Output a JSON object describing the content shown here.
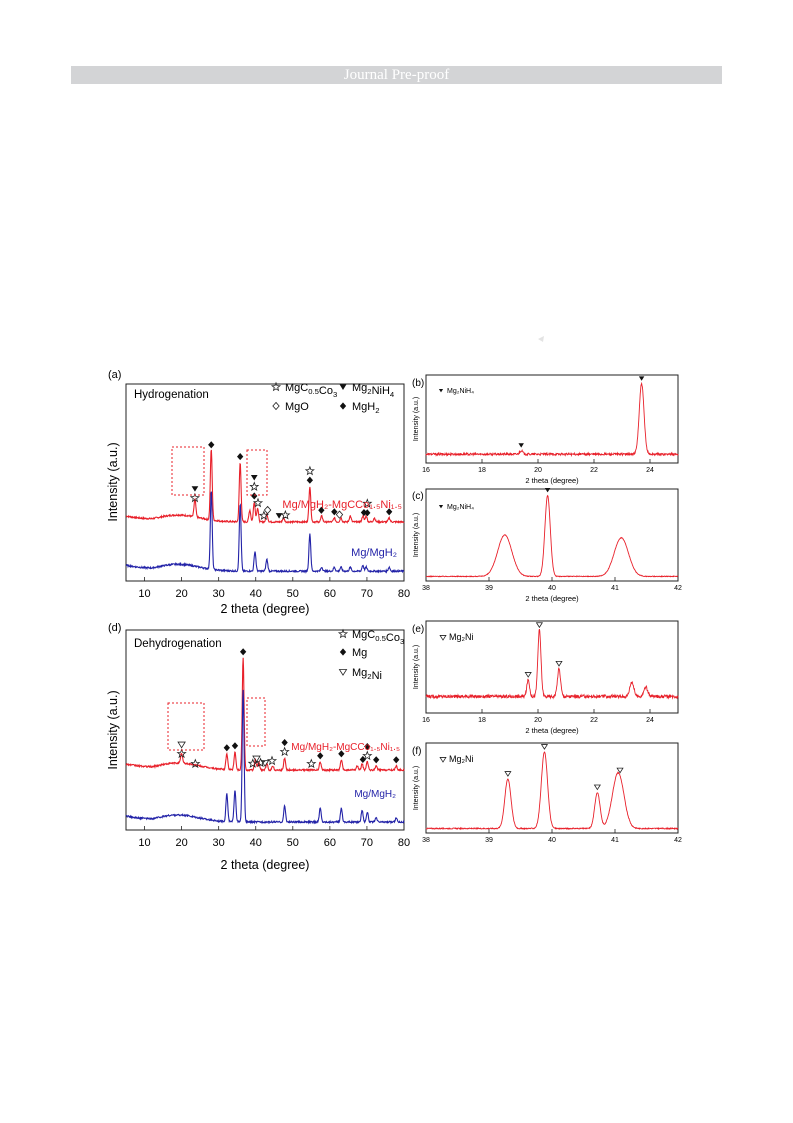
{
  "banner": {
    "text": "Journal Pre-proof"
  },
  "colors": {
    "red": "#e8202a",
    "blue": "#2323a8",
    "black": "#111111",
    "banner_bg": "#d3d4d6"
  },
  "icons": {
    "watermark": "crescent-arrow-icon",
    "filled_triangle": "filled-down-triangle-icon",
    "open_triangle": "open-down-triangle-icon",
    "star": "star-icon",
    "diamond_open": "open-diamond-icon",
    "diamond_filled": "filled-diamond-icon"
  },
  "figure": {
    "a": {
      "panel_label": "(a)",
      "condition": "Hydrogenation",
      "legend": [
        {
          "symbol": "star",
          "text": "MgC",
          "sub": "0.5",
          "tail": "Co",
          "sub2": "3",
          "tail2": ""
        },
        {
          "symbol": "filled_triangle",
          "text": "Mg",
          "sub": "2",
          "tail": "NiH",
          "sub2": "4",
          "tail2": ""
        },
        {
          "symbol": "diamond_open",
          "text": "MgO",
          "sub": "",
          "tail": "",
          "sub2": "",
          "tail2": ""
        },
        {
          "symbol": "diamond_filled",
          "text": "MgH",
          "sub": "2",
          "tail": "",
          "sub2": "",
          "tail2": ""
        }
      ],
      "series_labels": [
        {
          "text": "Mg/MgH₂-MgCCo₁.₅Ni₁.₅",
          "color": "red"
        },
        {
          "text": "Mg/MgH₂",
          "color": "blue"
        }
      ],
      "xlabel": "2 theta (degree)",
      "ylabel": "Intensity (a.u.)",
      "xticks": [
        "10",
        "20",
        "30",
        "40",
        "50",
        "60",
        "70",
        "80"
      ]
    },
    "b": {
      "panel_label": "(b)",
      "legend": "Mg₂NiH₄",
      "xlabel": "2 theta (degree)",
      "ylabel": "Intensity (a.u.)",
      "xticks": [
        "16",
        "18",
        "20",
        "22",
        "24"
      ]
    },
    "c": {
      "panel_label": "(c)",
      "legend": "Mg₂NiH₄",
      "xlabel": "2 theta (degree)",
      "ylabel": "Intensity (a.u.)",
      "xticks": [
        "38",
        "39",
        "40",
        "41",
        "42"
      ]
    },
    "d": {
      "panel_label": "(d)",
      "condition": "Dehydrogenation",
      "legend": [
        {
          "symbol": "star",
          "text": "MgC",
          "sub": "0.5",
          "tail": "Co",
          "sub2": "3",
          "tail2": ""
        },
        {
          "symbol": "diamond_filled",
          "text": "Mg",
          "sub": "",
          "tail": "",
          "sub2": "",
          "tail2": ""
        },
        {
          "symbol": "open_triangle",
          "text": "Mg",
          "sub": "2",
          "tail": "Ni",
          "sub2": "",
          "tail2": ""
        }
      ],
      "series_labels": [
        {
          "text": "Mg/MgH₂-MgCCo₁.₅Ni₁.₅",
          "color": "red"
        },
        {
          "text": "Mg/MgH₂",
          "color": "blue"
        }
      ],
      "xlabel": "2 theta (degree)",
      "ylabel": "Intensity (a.u.)",
      "xticks": [
        "10",
        "20",
        "30",
        "40",
        "50",
        "60",
        "70",
        "80"
      ]
    },
    "e": {
      "panel_label": "(e)",
      "legend": "Mg₂Ni",
      "xlabel": "2 theta (degree)",
      "ylabel": "Intensity (a.u.)",
      "xticks": [
        "16",
        "18",
        "20",
        "22",
        "24"
      ]
    },
    "f": {
      "panel_label": "(f)",
      "legend": "Mg₂Ni",
      "xlabel": "",
      "ylabel": "Intensity (a.u.)",
      "xticks": [
        "38",
        "39",
        "40",
        "41",
        "42"
      ]
    }
  },
  "chart_data": [
    {
      "type": "line",
      "id": "a",
      "xlim": [
        5,
        80
      ],
      "series": [
        {
          "name": "Mg/MgH₂-MgCCo₁.₅Ni₁.₅",
          "color": "red",
          "baseline": 0.3,
          "peaks": [
            [
              23.6,
              0.09
            ],
            [
              28.0,
              0.36
            ],
            [
              35.8,
              0.3
            ],
            [
              38.4,
              0.06
            ],
            [
              39.6,
              0.1
            ],
            [
              40.5,
              0.07
            ],
            [
              43.0,
              0.04
            ],
            [
              47.5,
              0.02
            ],
            [
              54.6,
              0.18
            ],
            [
              57.8,
              0.03
            ],
            [
              61.2,
              0.02
            ],
            [
              63.0,
              0.02
            ],
            [
              65.5,
              0.03
            ],
            [
              68.9,
              0.03
            ],
            [
              69.8,
              0.03
            ],
            [
              72.0,
              0.02
            ],
            [
              76.0,
              0.02
            ]
          ],
          "markers": [
            {
              "x": 23.6,
              "s": [
                "star",
                "filled_triangle"
              ]
            },
            {
              "x": 28.0,
              "s": [
                "diamond_filled"
              ]
            },
            {
              "x": 35.8,
              "s": [
                "diamond_filled"
              ]
            },
            {
              "x": 39.6,
              "s": [
                "diamond_filled",
                "star",
                "filled_triangle"
              ]
            },
            {
              "x": 40.6,
              "s": [
                "star"
              ]
            },
            {
              "x": 42.2,
              "s": [
                "star"
              ]
            },
            {
              "x": 43.2,
              "s": [
                "diamond_open"
              ]
            },
            {
              "x": 46.3,
              "s": [
                "filled_triangle"
              ]
            },
            {
              "x": 48.0,
              "s": [
                "star"
              ]
            },
            {
              "x": 54.6,
              "s": [
                "diamond_filled",
                "star"
              ]
            },
            {
              "x": 57.7,
              "s": [
                "diamond_filled"
              ]
            },
            {
              "x": 61.2,
              "s": [
                "diamond_filled"
              ]
            },
            {
              "x": 62.6,
              "s": [
                "diamond_open"
              ]
            },
            {
              "x": 69.2,
              "s": [
                "diamond_filled"
              ]
            },
            {
              "x": 70.1,
              "s": [
                "diamond_filled",
                "star"
              ]
            },
            {
              "x": 76.0,
              "s": [
                "diamond_filled"
              ]
            }
          ]
        },
        {
          "name": "Mg/MgH₂",
          "color": "blue",
          "baseline": 0.05,
          "peaks": [
            [
              28.0,
              0.4
            ],
            [
              35.8,
              0.34
            ],
            [
              39.8,
              0.1
            ],
            [
              43.0,
              0.06
            ],
            [
              54.6,
              0.19
            ],
            [
              57.8,
              0.02
            ],
            [
              61.2,
              0.02
            ],
            [
              63.0,
              0.02
            ],
            [
              65.5,
              0.02
            ],
            [
              68.9,
              0.03
            ],
            [
              69.8,
              0.02
            ],
            [
              76.0,
              0.02
            ]
          ]
        }
      ]
    },
    {
      "type": "line",
      "id": "b",
      "xlim": [
        16,
        25
      ],
      "series": [
        {
          "name": "Mg₂NiH₄",
          "color": "red",
          "baseline": 0.1,
          "noise": 0.025,
          "peaks": [
            [
              19.4,
              0.04,
              0.08
            ],
            [
              23.7,
              0.8,
              0.12
            ]
          ],
          "markers": [
            {
              "x": 19.4,
              "s": [
                "filled_triangle"
              ]
            },
            {
              "x": 23.7,
              "s": [
                "filled_triangle"
              ]
            }
          ]
        }
      ]
    },
    {
      "type": "line",
      "id": "c",
      "xlim": [
        38,
        42
      ],
      "series": [
        {
          "name": "Mg₂NiH₄",
          "color": "red",
          "baseline": 0.05,
          "noise": 0.008,
          "peaks": [
            [
              39.25,
              0.45,
              0.16
            ],
            [
              39.93,
              0.88,
              0.06
            ],
            [
              41.1,
              0.42,
              0.16
            ]
          ],
          "markers": [
            {
              "x": 39.93,
              "s": [
                "filled_triangle"
              ]
            }
          ]
        }
      ]
    },
    {
      "type": "line",
      "id": "d",
      "xlim": [
        5,
        80
      ],
      "series": [
        {
          "name": "Mg/MgH₂-MgCCo₁.₅Ni₁.₅",
          "color": "red",
          "baseline": 0.3,
          "peaks": [
            [
              20.0,
              0.05
            ],
            [
              32.2,
              0.08
            ],
            [
              34.4,
              0.09
            ],
            [
              36.6,
              0.56
            ],
            [
              39.9,
              0.05
            ],
            [
              40.8,
              0.04
            ],
            [
              43.0,
              0.03
            ],
            [
              44.6,
              0.02
            ],
            [
              47.8,
              0.06
            ],
            [
              57.4,
              0.04
            ],
            [
              63.1,
              0.05
            ],
            [
              67.4,
              0.02
            ],
            [
              68.7,
              0.03
            ],
            [
              70.1,
              0.04
            ],
            [
              72.5,
              0.02
            ],
            [
              77.9,
              0.02
            ]
          ],
          "markers": [
            {
              "x": 20.0,
              "s": [
                "star",
                "open_triangle"
              ]
            },
            {
              "x": 23.7,
              "s": [
                "star"
              ]
            },
            {
              "x": 32.2,
              "s": [
                "diamond_filled"
              ]
            },
            {
              "x": 34.4,
              "s": [
                "diamond_filled"
              ]
            },
            {
              "x": 36.6,
              "s": [
                "diamond_filled"
              ]
            },
            {
              "x": 39.2,
              "s": [
                "star"
              ]
            },
            {
              "x": 40.2,
              "s": [
                "open_triangle"
              ]
            },
            {
              "x": 41.3,
              "s": [
                "star"
              ]
            },
            {
              "x": 42.5,
              "s": [
                "open_triangle"
              ]
            },
            {
              "x": 44.4,
              "s": [
                "star"
              ]
            },
            {
              "x": 47.8,
              "s": [
                "star",
                "diamond_filled"
              ]
            },
            {
              "x": 55.0,
              "s": [
                "star"
              ]
            },
            {
              "x": 57.4,
              "s": [
                "diamond_filled"
              ]
            },
            {
              "x": 63.1,
              "s": [
                "diamond_filled"
              ]
            },
            {
              "x": 68.9,
              "s": [
                "diamond_filled"
              ]
            },
            {
              "x": 70.1,
              "s": [
                "star",
                "diamond_filled"
              ]
            },
            {
              "x": 72.5,
              "s": [
                "diamond_filled"
              ]
            },
            {
              "x": 77.9,
              "s": [
                "diamond_filled"
              ]
            }
          ]
        },
        {
          "name": "Mg/MgH₂",
          "color": "blue",
          "baseline": 0.04,
          "peaks": [
            [
              32.2,
              0.14
            ],
            [
              34.4,
              0.16
            ],
            [
              36.6,
              0.66
            ],
            [
              47.8,
              0.08
            ],
            [
              57.4,
              0.07
            ],
            [
              63.1,
              0.07
            ],
            [
              68.7,
              0.06
            ],
            [
              70.1,
              0.05
            ],
            [
              72.5,
              0.02
            ],
            [
              77.9,
              0.02
            ]
          ]
        }
      ]
    },
    {
      "type": "line",
      "id": "e",
      "xlim": [
        16,
        25
      ],
      "series": [
        {
          "name": "Mg₂Ni",
          "color": "red",
          "baseline": 0.18,
          "noise": 0.035,
          "peaks": [
            [
              19.65,
              0.18,
              0.07
            ],
            [
              20.05,
              0.72,
              0.08
            ],
            [
              20.75,
              0.3,
              0.08
            ],
            [
              23.35,
              0.16,
              0.1
            ],
            [
              23.85,
              0.1,
              0.1
            ]
          ],
          "markers": [
            {
              "x": 19.65,
              "s": [
                "open_triangle"
              ]
            },
            {
              "x": 20.05,
              "s": [
                "open_triangle"
              ]
            },
            {
              "x": 20.75,
              "s": [
                "open_triangle"
              ]
            }
          ]
        }
      ]
    },
    {
      "type": "line",
      "id": "f",
      "xlim": [
        38,
        42
      ],
      "series": [
        {
          "name": "Mg₂Ni",
          "color": "red",
          "baseline": 0.05,
          "noise": 0.012,
          "peaks": [
            [
              39.3,
              0.55,
              0.07
            ],
            [
              39.88,
              0.85,
              0.07
            ],
            [
              40.72,
              0.4,
              0.06
            ],
            [
              41.05,
              0.62,
              0.13
            ]
          ],
          "markers": [
            {
              "x": 39.3,
              "s": [
                "open_triangle"
              ]
            },
            {
              "x": 39.88,
              "s": [
                "open_triangle"
              ]
            },
            {
              "x": 40.72,
              "s": [
                "open_triangle"
              ]
            },
            {
              "x": 41.08,
              "s": [
                "open_triangle"
              ]
            }
          ]
        }
      ]
    }
  ]
}
